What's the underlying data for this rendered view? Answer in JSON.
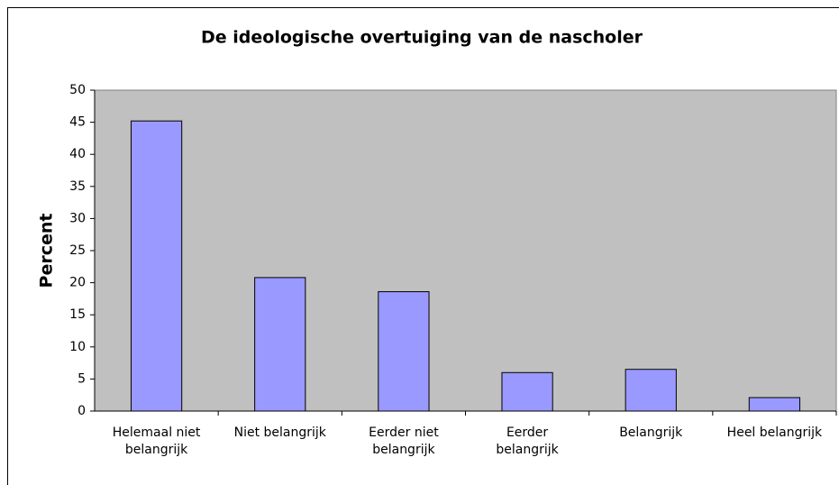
{
  "chart_data": {
    "type": "bar",
    "title": "De ideologische overtuiging van de nascholer",
    "y_label": "Percent",
    "categories": [
      "Helemaal niet\nbelangrijk",
      "Niet belangrijk",
      "Eerder niet\nbelangrijk",
      "Eerder\nbelangrijk",
      "Belangrijk",
      "Heel belangrijk"
    ],
    "values": [
      45.2,
      20.8,
      18.6,
      6.0,
      6.5,
      2.1
    ],
    "color": "#9999ff",
    "plot_background": "#c0c0c0",
    "ylim": [
      0,
      50
    ],
    "yticks": [
      0,
      5,
      10,
      15,
      20,
      25,
      30,
      35,
      40,
      45,
      50
    ],
    "grid": false
  }
}
